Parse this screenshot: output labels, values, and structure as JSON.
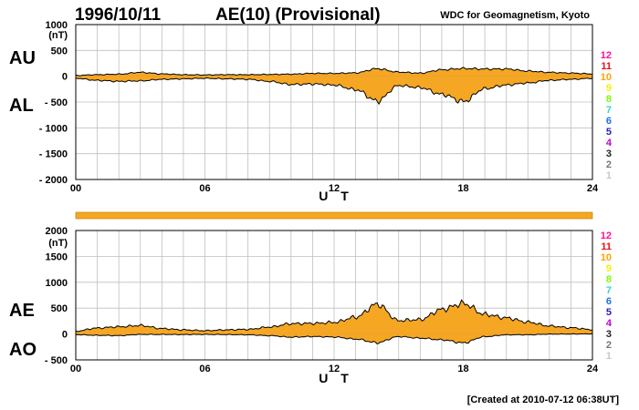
{
  "header": {
    "date": "1996/10/11",
    "title": "AE(10) (Provisional)",
    "source": "WDC for Geomagnetism, Kyoto",
    "created": "[Created at 2010-07-12 06:38UT]"
  },
  "colors": {
    "fill": "#f5a623",
    "bar": "#f5a623",
    "grid": "#bfbfbf",
    "line": "#000000"
  },
  "legend": {
    "labels": [
      "12",
      "11",
      "10",
      "9",
      "8",
      "7",
      "6",
      "5",
      "4",
      "3",
      "2",
      "1"
    ],
    "colors": [
      "#ff1493",
      "#e8121a",
      "#ffa500",
      "#f2f200",
      "#7cfc00",
      "#35d6c8",
      "#1e6ff0",
      "#2a1fb0",
      "#c000d6",
      "#222222",
      "#777777",
      "#c8c8c8"
    ]
  },
  "chart_data": [
    {
      "type": "area",
      "name": "AU/AL",
      "ylabel_top": "AU",
      "ylabel_bottom": "AL",
      "unit": "(nT)",
      "xlabel": "U T",
      "xlim": [
        0,
        24
      ],
      "ylim": [
        -2000,
        1000
      ],
      "xticks": [
        "00",
        "06",
        "12",
        "18",
        "24"
      ],
      "yticks": [
        "1000",
        "500",
        "0",
        "- 500",
        "- 1000",
        "- 1500",
        "- 2000"
      ],
      "x": [
        0,
        1,
        2,
        3,
        4,
        5,
        6,
        7,
        8,
        9,
        10,
        11,
        12,
        13,
        14,
        15,
        16,
        17,
        18,
        19,
        20,
        21,
        22,
        23,
        24
      ],
      "series": [
        {
          "name": "AU",
          "values": [
            15,
            30,
            40,
            75,
            45,
            30,
            25,
            30,
            30,
            35,
            40,
            55,
            55,
            65,
            145,
            80,
            60,
            125,
            150,
            140,
            140,
            100,
            75,
            60,
            45
          ]
        },
        {
          "name": "AL",
          "values": [
            -40,
            -80,
            -100,
            -90,
            -60,
            -50,
            -40,
            -50,
            -60,
            -100,
            -160,
            -150,
            -170,
            -260,
            -480,
            -180,
            -220,
            -350,
            -490,
            -240,
            -170,
            -130,
            -80,
            -60,
            -40
          ]
        }
      ]
    },
    {
      "type": "area",
      "name": "AE/AO",
      "ylabel_top": "AE",
      "ylabel_bottom": "AO",
      "unit": "(nT)",
      "xlabel": "U T",
      "xlim": [
        0,
        24
      ],
      "ylim": [
        -500,
        2000
      ],
      "xticks": [
        "00",
        "06",
        "12",
        "18",
        "24"
      ],
      "yticks": [
        "2000",
        "1500",
        "1000",
        "500",
        "0",
        "- 500"
      ],
      "x": [
        0,
        1,
        2,
        3,
        4,
        5,
        6,
        7,
        8,
        9,
        10,
        11,
        12,
        13,
        14,
        15,
        16,
        17,
        18,
        19,
        20,
        21,
        22,
        23,
        24
      ],
      "series": [
        {
          "name": "AE",
          "values": [
            55,
            115,
            140,
            165,
            105,
            80,
            65,
            80,
            90,
            135,
            200,
            205,
            225,
            325,
            575,
            260,
            280,
            475,
            590,
            380,
            310,
            230,
            155,
            120,
            85
          ]
        },
        {
          "name": "AO",
          "values": [
            -12,
            -25,
            -30,
            -8,
            -8,
            -10,
            -8,
            -10,
            -15,
            -32,
            -60,
            -48,
            -58,
            -98,
            -168,
            -50,
            -80,
            -112,
            -170,
            -50,
            -15,
            -15,
            -3,
            0,
            3
          ]
        }
      ]
    }
  ]
}
